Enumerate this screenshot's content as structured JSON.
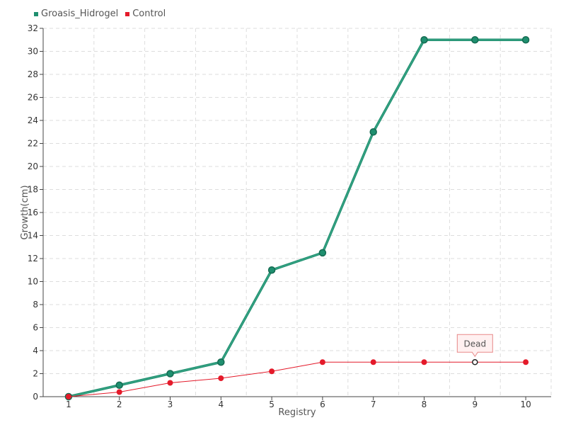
{
  "chart_data": {
    "type": "line",
    "xlabel": "Registry",
    "ylabel": "Growth(cm)",
    "categories": [
      1,
      2,
      3,
      4,
      5,
      6,
      7,
      8,
      9,
      10
    ],
    "ylim": [
      0,
      32
    ],
    "ytick_step": 2,
    "grid": true,
    "legend_position": "top-left",
    "series": [
      {
        "name": "Groasis_Hidrogel",
        "color": "#1f8f6f",
        "values": [
          0,
          1,
          2,
          3,
          11,
          12.5,
          23,
          31,
          31,
          31
        ]
      },
      {
        "name": "Control",
        "color": "#e41a2a",
        "values": [
          0,
          0.4,
          1.2,
          1.6,
          2.2,
          3,
          3,
          3,
          3,
          3
        ]
      }
    ],
    "annotation": {
      "series": "Control",
      "category": 9,
      "text": "Dead"
    }
  }
}
